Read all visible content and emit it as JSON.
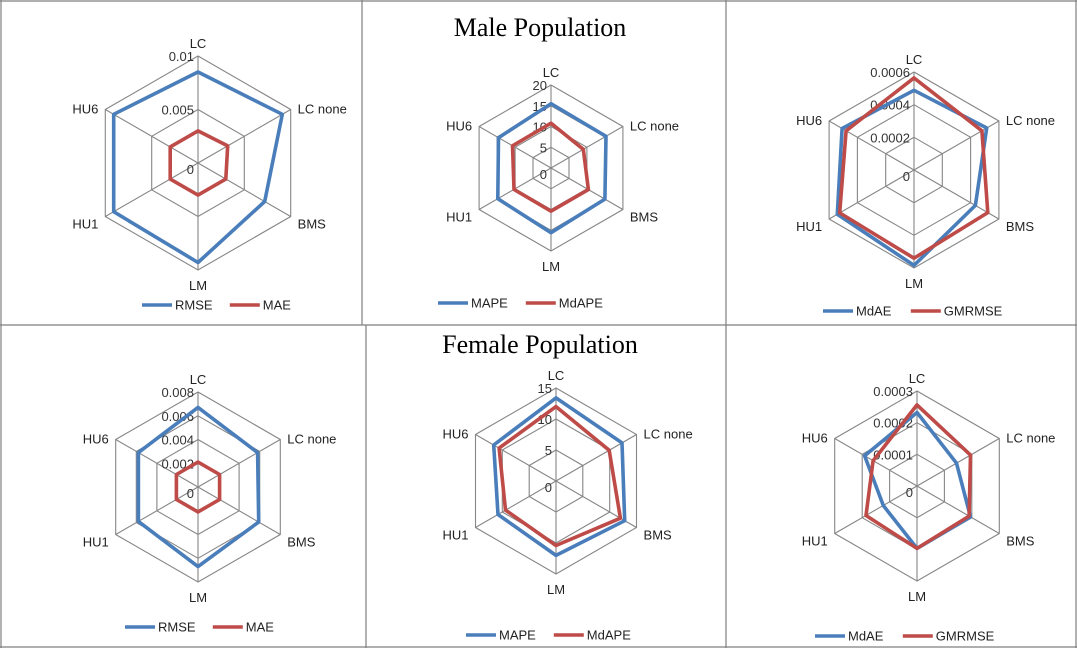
{
  "titles": {
    "male": "Male Population",
    "female": "Female Population"
  },
  "colors": {
    "blue": "#4a7ebb",
    "red": "#be4b48",
    "grid": "#868686",
    "border": "#7f7f7f"
  },
  "chart_data": [
    {
      "type": "radar",
      "population": "Male",
      "axes": [
        "LC",
        "LC none",
        "BMS",
        "LM",
        "HU1",
        "HU6"
      ],
      "rlim": [
        0,
        0.01
      ],
      "ticks": [
        "0",
        "0.005",
        "0.01"
      ],
      "series": [
        {
          "name": "RMSE",
          "color": "#4a7ebb",
          "values": [
            0.0085,
            0.0091,
            0.0072,
            0.0093,
            0.0091,
            0.0091
          ]
        },
        {
          "name": "MAE",
          "color": "#be4b48",
          "values": [
            0.003,
            0.0032,
            0.003,
            0.003,
            0.003,
            0.003
          ]
        }
      ],
      "legend": "bottom"
    },
    {
      "type": "radar",
      "population": "Male",
      "axes": [
        "LC",
        "LC none",
        "BMS",
        "LM",
        "HU1",
        "HU6"
      ],
      "rlim": [
        0,
        20
      ],
      "ticks": [
        "0",
        "5",
        "10",
        "15",
        "20"
      ],
      "series": [
        {
          "name": "MAPE",
          "color": "#4a7ebb",
          "values": [
            15.5,
            15.3,
            15.0,
            15.6,
            14.8,
            14.6
          ]
        },
        {
          "name": "MdAPE",
          "color": "#be4b48",
          "values": [
            10.8,
            9.0,
            10.4,
            10.4,
            10.3,
            10.7
          ]
        }
      ],
      "legend": "bottom"
    },
    {
      "type": "radar",
      "population": "Male",
      "axes": [
        "LC",
        "LC none",
        "BMS",
        "LM",
        "HU1",
        "HU6"
      ],
      "rlim": [
        0,
        0.0006
      ],
      "ticks": [
        "0",
        "0.0002",
        "0.0004",
        "0.0006"
      ],
      "series": [
        {
          "name": "MdAE",
          "color": "#4a7ebb",
          "values": [
            0.000488,
            0.000514,
            0.000434,
            0.000584,
            0.000542,
            0.000508
          ]
        },
        {
          "name": "GMRMSE",
          "color": "#be4b48",
          "values": [
            0.000564,
            0.00048,
            0.000522,
            0.00054,
            0.000525,
            0.00048
          ]
        }
      ],
      "legend": "bottom"
    },
    {
      "type": "radar",
      "population": "Female",
      "axes": [
        "LC",
        "LC none",
        "BMS",
        "LM",
        "HU1",
        "HU6"
      ],
      "rlim": [
        0,
        0.008
      ],
      "ticks": [
        "0",
        "0.002",
        "0.004",
        "0.006",
        "0.008"
      ],
      "series": [
        {
          "name": "RMSE",
          "color": "#4a7ebb",
          "values": [
            0.0067,
            0.0058,
            0.0059,
            0.0067,
            0.0058,
            0.0058
          ]
        },
        {
          "name": "MAE",
          "color": "#be4b48",
          "values": [
            0.0021,
            0.0021,
            0.0021,
            0.0021,
            0.0021,
            0.0021
          ]
        }
      ],
      "legend": "bottom"
    },
    {
      "type": "radar",
      "population": "Female",
      "axes": [
        "LC",
        "LC none",
        "BMS",
        "LM",
        "HU1",
        "HU6"
      ],
      "rlim": [
        0,
        15
      ],
      "ticks": [
        "0",
        "5",
        "10",
        "15"
      ],
      "series": [
        {
          "name": "MAPE",
          "color": "#4a7ebb",
          "values": [
            13.4,
            12.3,
            12.8,
            12.0,
            10.8,
            11.6
          ]
        },
        {
          "name": "MdAPE",
          "color": "#be4b48",
          "values": [
            12.0,
            9.9,
            12.0,
            10.4,
            9.4,
            10.6
          ]
        }
      ],
      "legend": "bottom"
    },
    {
      "type": "radar",
      "population": "Female",
      "axes": [
        "LC",
        "LC none",
        "BMS",
        "LM",
        "HU1",
        "HU6"
      ],
      "rlim": [
        0,
        0.0003
      ],
      "ticks": [
        "0",
        "0.0001",
        "0.0002",
        "0.0003"
      ],
      "series": [
        {
          "name": "MdAE",
          "color": "#4a7ebb",
          "values": [
            0.000232,
            0.000144,
            0.000195,
            0.000197,
            0.000123,
            0.000191
          ]
        },
        {
          "name": "GMRMSE",
          "color": "#be4b48",
          "values": [
            0.000256,
            0.000195,
            0.00019,
            0.000197,
            0.000186,
            0.00016
          ]
        }
      ],
      "legend": "bottom"
    }
  ]
}
